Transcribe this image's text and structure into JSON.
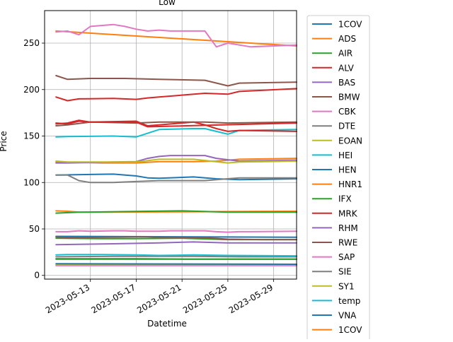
{
  "chart_data": {
    "type": "line",
    "title": "Low",
    "xlabel": "Datetime",
    "ylabel": "Price",
    "x_ticks": [
      "2023-05-13",
      "2023-05-17",
      "2023-05-21",
      "2023-05-25",
      "2023-05-29"
    ],
    "y_ticks": [
      0,
      50,
      100,
      150,
      200,
      250
    ],
    "xlim": [
      "2023-05-09",
      "2023-05-31"
    ],
    "ylim": [
      -4,
      285
    ],
    "grid": true,
    "legend_position": "outside-right",
    "series": [
      {
        "name": "1COV",
        "color": "#1f77b4",
        "x": [
          "2023-05-10",
          "2023-05-31"
        ],
        "y": [
          42,
          41
        ]
      },
      {
        "name": "ADS",
        "color": "#ff7f0e",
        "x": [
          "2023-05-10",
          "2023-05-11",
          "2023-05-12",
          "2023-05-31"
        ],
        "y": [
          69.5,
          69,
          68,
          69
        ]
      },
      {
        "name": "AIR",
        "color": "#2ca02c",
        "x": [
          "2023-05-10",
          "2023-05-12",
          "2023-05-18",
          "2023-05-21",
          "2023-05-25",
          "2023-05-31"
        ],
        "y": [
          67,
          68,
          69,
          69.5,
          68,
          68
        ]
      },
      {
        "name": "ALV",
        "color": "#d62728",
        "x": [
          "2023-05-10",
          "2023-05-11",
          "2023-05-12",
          "2023-05-15",
          "2023-05-17",
          "2023-05-18",
          "2023-05-19",
          "2023-05-23",
          "2023-05-25",
          "2023-05-26",
          "2023-05-31"
        ],
        "y": [
          192,
          188,
          190,
          190.5,
          189.5,
          191,
          192,
          196,
          195,
          198,
          201
        ]
      },
      {
        "name": "BAS",
        "color": "#9467bd",
        "x": [
          "2023-05-10",
          "2023-05-15",
          "2023-05-19",
          "2023-05-22",
          "2023-05-25",
          "2023-05-31"
        ],
        "y": [
          33,
          34,
          35,
          36,
          35,
          35
        ]
      },
      {
        "name": "BMW",
        "color": "#8c564b",
        "x": [
          "2023-05-10",
          "2023-05-11",
          "2023-05-13",
          "2023-05-16",
          "2023-05-19",
          "2023-05-23",
          "2023-05-25",
          "2023-05-26",
          "2023-05-31"
        ],
        "y": [
          215,
          211,
          212,
          212,
          211,
          210,
          204,
          207,
          208
        ]
      },
      {
        "name": "CBK",
        "color": "#e377c2",
        "x": [
          "2023-05-10",
          "2023-05-31"
        ],
        "y": [
          10.5,
          10.5
        ]
      },
      {
        "name": "DTE",
        "color": "#7f7f7f",
        "x": [
          "2023-05-10",
          "2023-05-15",
          "2023-05-19",
          "2023-05-22",
          "2023-05-26",
          "2023-05-31"
        ],
        "y": [
          20,
          20.5,
          20.5,
          20.5,
          20,
          20
        ]
      },
      {
        "name": "EOAN",
        "color": "#bcbd22",
        "x": [
          "2023-05-10",
          "2023-05-31"
        ],
        "y": [
          11.2,
          11.3
        ]
      },
      {
        "name": "HEI",
        "color": "#17becf",
        "x": [
          "2023-05-10",
          "2023-05-11",
          "2023-05-15",
          "2023-05-17",
          "2023-05-18",
          "2023-05-19",
          "2023-05-22",
          "2023-05-23",
          "2023-05-25",
          "2023-05-26",
          "2023-05-31"
        ],
        "y": [
          149,
          149.5,
          150,
          149,
          153,
          157,
          158,
          158,
          152,
          156,
          157
        ]
      },
      {
        "name": "HEN",
        "color": "#1f77b4",
        "x": [
          "2023-05-10",
          "2023-05-15",
          "2023-05-17",
          "2023-05-18",
          "2023-05-19",
          "2023-05-22",
          "2023-05-24",
          "2023-05-26",
          "2023-05-31"
        ],
        "y": [
          108,
          109,
          107,
          105,
          104.5,
          106,
          104,
          103,
          104
        ]
      },
      {
        "name": "HNR1",
        "color": "#ff7f0e",
        "x": [
          "2023-05-10",
          "2023-05-14",
          "2023-05-17",
          "2023-05-19",
          "2023-05-22",
          "2023-05-24",
          "2023-05-25",
          "2023-05-26",
          "2023-05-31"
        ],
        "y": [
          122,
          121,
          121,
          122.5,
          122.5,
          123,
          124,
          125,
          126
        ]
      },
      {
        "name": "IFX",
        "color": "#2ca02c",
        "x": [
          "2023-05-10",
          "2023-05-14",
          "2023-05-17",
          "2023-05-21",
          "2023-05-25",
          "2023-05-31"
        ],
        "y": [
          40,
          39.5,
          39.5,
          40,
          38.5,
          38.5
        ]
      },
      {
        "name": "MRK",
        "color": "#d62728",
        "x": [
          "2023-05-10",
          "2023-05-11",
          "2023-05-12",
          "2023-05-13",
          "2023-05-17",
          "2023-05-18",
          "2023-05-19",
          "2023-05-22",
          "2023-05-23",
          "2023-05-24",
          "2023-05-25",
          "2023-05-26",
          "2023-05-31"
        ],
        "y": [
          164,
          163,
          166,
          165,
          166,
          161,
          162,
          165,
          162,
          158,
          155,
          156,
          155
        ]
      },
      {
        "name": "RHM",
        "color": "#9467bd",
        "x": [
          "2023-05-10",
          "2023-05-11",
          "2023-05-15",
          "2023-05-17",
          "2023-05-18",
          "2023-05-19",
          "2023-05-20",
          "2023-05-23",
          "2023-05-24",
          "2023-05-26",
          "2023-05-31"
        ],
        "y": [
          121,
          121,
          122,
          122.5,
          126,
          128,
          129,
          129,
          126,
          123,
          124
        ]
      },
      {
        "name": "RWE",
        "color": "#8c564b",
        "x": [
          "2023-05-10",
          "2023-05-11",
          "2023-05-14",
          "2023-05-17",
          "2023-05-18",
          "2023-05-19",
          "2023-05-20",
          "2023-05-23",
          "2023-05-25",
          "2023-05-28",
          "2023-05-31"
        ],
        "y": [
          41.5,
          40.5,
          41,
          41.5,
          41.5,
          41,
          41,
          40.5,
          39,
          38.5,
          38.5
        ]
      },
      {
        "name": "SAP",
        "color": "#e377c2",
        "x": [
          "2023-05-10",
          "2023-05-11",
          "2023-05-12",
          "2023-05-13",
          "2023-05-15",
          "2023-05-16",
          "2023-05-17",
          "2023-05-19",
          "2023-05-20",
          "2023-05-23",
          "2023-05-24",
          "2023-05-25",
          "2023-05-26",
          "2023-05-27",
          "2023-05-31"
        ],
        "y": [
          47,
          47,
          48,
          47.5,
          48,
          48,
          47.5,
          47.5,
          48,
          48,
          47,
          46.5,
          47,
          47,
          47.5
        ]
      },
      {
        "name": "SIE",
        "color": "#7f7f7f",
        "x": [
          "2023-05-10",
          "2023-05-11",
          "2023-05-12",
          "2023-05-13",
          "2023-05-15",
          "2023-05-17",
          "2023-05-19",
          "2023-05-23",
          "2023-05-25",
          "2023-05-26",
          "2023-05-31"
        ],
        "y": [
          108,
          108,
          102,
          100,
          100,
          101,
          102,
          102,
          104,
          105,
          105
        ]
      },
      {
        "name": "SY1",
        "color": "#bcbd22",
        "x": [
          "2023-05-10",
          "2023-05-11",
          "2023-05-13",
          "2023-05-17",
          "2023-05-19",
          "2023-05-22",
          "2023-05-25",
          "2023-05-26",
          "2023-05-31"
        ],
        "y": [
          123,
          122,
          122,
          122,
          125,
          125,
          121,
          122,
          123
        ]
      },
      {
        "name": "temp",
        "color": "#17becf",
        "x": [
          "2023-05-10",
          "2023-05-11",
          "2023-05-14",
          "2023-05-17",
          "2023-05-19",
          "2023-05-22",
          "2023-05-25",
          "2023-05-31"
        ],
        "y": [
          22,
          22.5,
          22.5,
          22,
          21.5,
          22,
          21.5,
          21
        ]
      },
      {
        "name": "VNA",
        "color": "#1f77b4",
        "x": [
          "2023-05-10",
          "2023-05-31"
        ],
        "y": [
          17.5,
          17.5
        ]
      },
      {
        "name": "1COV",
        "color": "#ff7f0e",
        "x": [
          "2023-05-10",
          "2023-05-31"
        ],
        "y": [
          263,
          247
        ]
      }
    ],
    "overlays": [
      {
        "color": "#e377c2",
        "x": [
          "2023-05-10",
          "2023-05-11",
          "2023-05-12",
          "2023-05-13",
          "2023-05-15",
          "2023-05-16",
          "2023-05-17",
          "2023-05-18",
          "2023-05-19",
          "2023-05-20",
          "2023-05-23",
          "2023-05-24",
          "2023-05-25",
          "2023-05-26",
          "2023-05-27",
          "2023-05-31"
        ],
        "y": [
          262,
          263,
          259,
          268,
          270,
          268,
          265,
          263,
          264,
          263,
          263,
          246,
          250,
          248,
          246,
          248
        ]
      },
      {
        "color": "#2ca02c",
        "x": [
          "2023-05-10",
          "2023-05-14",
          "2023-05-17",
          "2023-05-21",
          "2023-05-25",
          "2023-05-31"
        ],
        "y": [
          18,
          18,
          18,
          17.5,
          17.5,
          17.5
        ]
      },
      {
        "color": "#1f77b4",
        "x": [
          "2023-05-10",
          "2023-05-31"
        ],
        "y": [
          12.5,
          12
        ]
      },
      {
        "color": "#8c564b",
        "x": [
          "2023-05-10",
          "2023-05-11",
          "2023-05-13",
          "2023-05-17",
          "2023-05-19",
          "2023-05-23",
          "2023-05-25",
          "2023-05-31"
        ],
        "y": [
          161,
          162,
          165,
          164,
          165,
          165,
          164,
          165
        ]
      },
      {
        "color": "#d62728",
        "x": [
          "2023-05-10",
          "2023-05-11",
          "2023-05-12",
          "2023-05-13",
          "2023-05-17",
          "2023-05-18",
          "2023-05-31"
        ],
        "y": [
          163,
          164,
          167,
          165,
          165,
          160,
          164
        ]
      }
    ]
  }
}
